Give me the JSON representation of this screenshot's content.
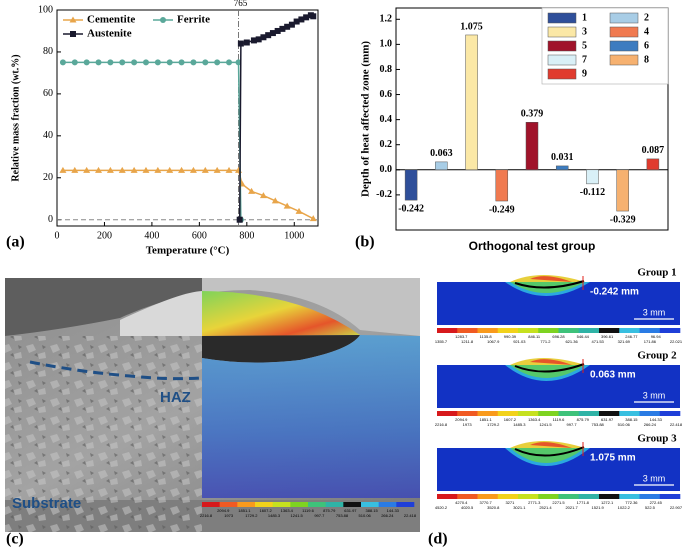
{
  "chart_data": [
    {
      "type": "line",
      "x_label": "Temperature (°C)",
      "y_label": "Relative mass fraction (wt.%)",
      "xlim": [
        0,
        1100
      ],
      "xticks": [
        0,
        200,
        400,
        600,
        800,
        1000
      ],
      "ylim": [
        -3,
        100
      ],
      "yticks": [
        0,
        20,
        40,
        60,
        80,
        100
      ],
      "reference_y": 0,
      "marker_line_x": 765,
      "legend": "upper left",
      "series": [
        {
          "name": "Cementite",
          "color": "#e8a54a",
          "marker": "triangle",
          "x": [
            25,
            75,
            125,
            175,
            225,
            275,
            325,
            375,
            425,
            475,
            525,
            575,
            625,
            675,
            725,
            765,
            780,
            820,
            870,
            920,
            970,
            1020,
            1080
          ],
          "values": [
            23.5,
            23.5,
            23.5,
            23.5,
            23.5,
            23.5,
            23.5,
            23.5,
            23.5,
            23.5,
            23.5,
            23.5,
            23.5,
            23.5,
            23.5,
            23.5,
            17,
            13.5,
            11.5,
            9,
            6.5,
            4,
            0.5
          ]
        },
        {
          "name": "Ferrite",
          "color": "#5aa89a",
          "marker": "circle",
          "x": [
            25,
            75,
            125,
            175,
            225,
            275,
            325,
            375,
            425,
            475,
            525,
            575,
            625,
            675,
            725,
            765,
            775
          ],
          "values": [
            75,
            75,
            75,
            75,
            75,
            75,
            75,
            75,
            75,
            75,
            75,
            75,
            75,
            75,
            75,
            75,
            0
          ]
        },
        {
          "name": "Austenite",
          "color": "#1a1a2e",
          "marker": "square",
          "x": [
            770,
            775,
            800,
            830,
            850,
            870,
            890,
            910,
            930,
            950,
            970,
            990,
            1010,
            1030,
            1050,
            1070,
            1080
          ],
          "values": [
            0,
            84,
            84.5,
            85.5,
            86,
            87,
            88,
            89,
            90,
            91,
            92,
            93,
            94.5,
            95.5,
            96.5,
            97.5,
            97
          ]
        }
      ]
    },
    {
      "type": "bar",
      "x_label": "Orthogonal test group",
      "y_label": "Depth of heat affected zone (mm)",
      "categories": [
        "1",
        "2",
        "3",
        "4",
        "5",
        "6",
        "7",
        "8",
        "9"
      ],
      "values": [
        -0.242,
        0.063,
        1.075,
        -0.249,
        0.379,
        0.031,
        -0.112,
        -0.329,
        0.087
      ],
      "colors": [
        "#2f4f9a",
        "#a8cde6",
        "#fbe8a6",
        "#f07a50",
        "#a0132a",
        "#3d7cc0",
        "#d9f0f7",
        "#f6b170",
        "#e03b2e"
      ],
      "ylim": [
        -0.48,
        1.29
      ],
      "yticks": [
        -0.2,
        {
          "value": 0,
          "label": "0.0"
        },
        0.2,
        0.4,
        0.6,
        0.8,
        {
          "value": 1,
          "label": "1.0"
        },
        1.2
      ],
      "legend": "upper right"
    }
  ],
  "panel_labels": [
    "(a)",
    "(b)",
    "(c)",
    "(d)"
  ],
  "micrograph": {
    "labels": [
      "HAZ",
      "Substrate"
    ],
    "colorbar": {
      "top": [
        "2094.9",
        "1851.1",
        "1607.2",
        "1363.4",
        "1119.6",
        "875.79",
        "631.97",
        "388.15",
        "144.33"
      ],
      "bottom": [
        "2216.8",
        "1973",
        "1729.2",
        "1485.3",
        "1241.5",
        "997.7",
        "753.88",
        "510.06",
        "266.24",
        "22.418"
      ]
    }
  },
  "simulations": [
    {
      "title": "Group 1",
      "depth": "-0.242 mm",
      "scale": "3 mm",
      "colorbar": {
        "top": [
          "1283.7",
          "1135.8",
          "990.39",
          "846.11",
          "696.28",
          "546.44",
          "396.61",
          "246.77",
          "96.94"
        ],
        "bottom": [
          "1355.7",
          "1211.8",
          "1067.9",
          "921.03",
          "771.2",
          "621.36",
          "471.53",
          "321.69",
          "171.86",
          "22.021"
        ]
      }
    },
    {
      "title": "Group 2",
      "depth": "0.063 mm",
      "scale": "3 mm",
      "colorbar": {
        "top": [
          "2094.9",
          "1851.1",
          "1607.2",
          "1363.4",
          "1119.6",
          "875.79",
          "631.97",
          "388.15",
          "144.33"
        ],
        "bottom": [
          "2216.8",
          "1973",
          "1729.2",
          "1485.3",
          "1241.5",
          "997.7",
          "753.88",
          "510.06",
          "266.24",
          "22.418"
        ]
      }
    },
    {
      "title": "Group 3",
      "depth": "1.075 mm",
      "scale": "3 mm",
      "colorbar": {
        "top": [
          "4270.4",
          "3770.7",
          "3271",
          "2771.3",
          "2271.5",
          "1771.8",
          "1272.1",
          "772.36",
          "272.45"
        ],
        "bottom": [
          "4520.2",
          "4020.5",
          "3520.8",
          "3021.1",
          "2521.4",
          "2021.7",
          "1521.9",
          "1022.2",
          "522.5",
          "22.907"
        ]
      }
    }
  ]
}
